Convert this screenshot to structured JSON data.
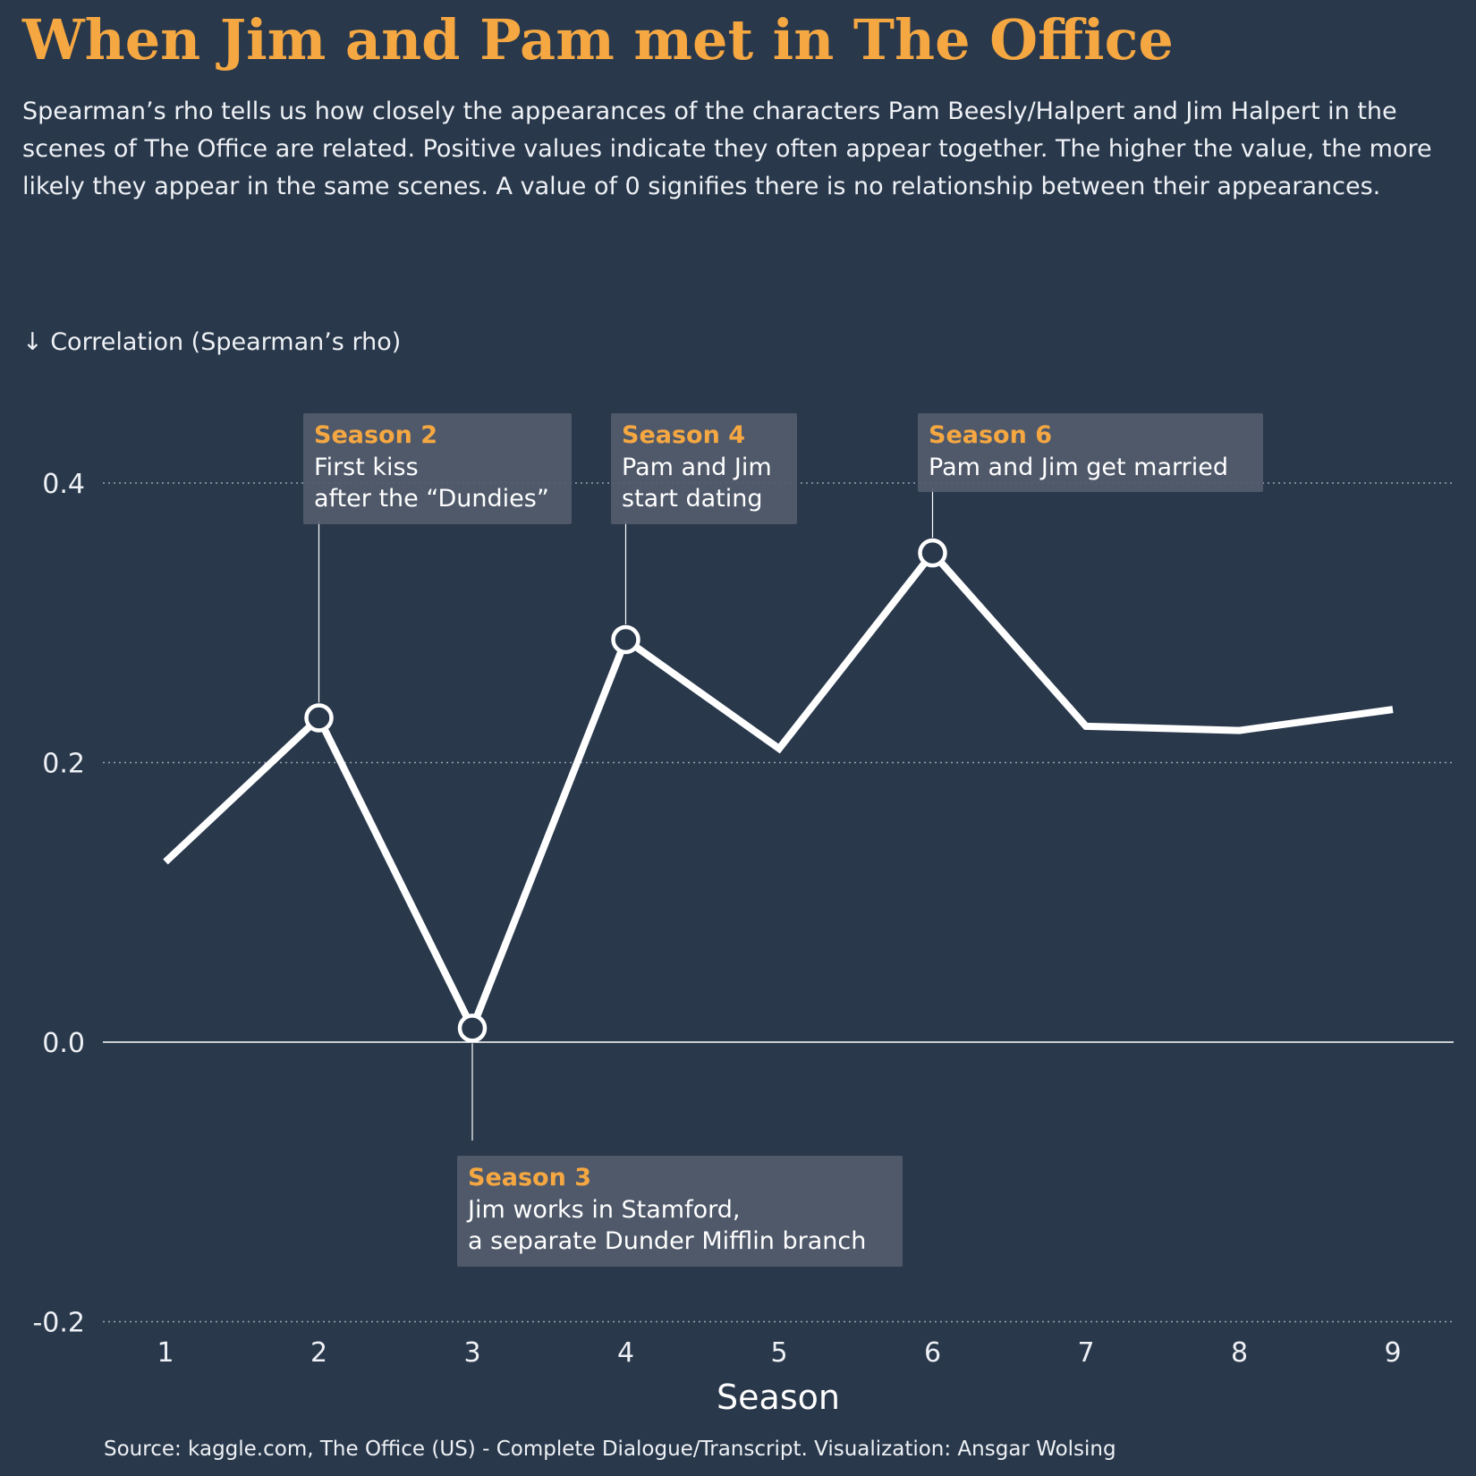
{
  "chart_data": {
    "type": "line",
    "title": "When Jim and Pam met in The Office",
    "subtitle": "Spearman’s rho tells us how closely the appearances of the characters Pam Beesly/Halpert and Jim Halpert in the scenes of The Office are related. Positive values indicate they often appear together. The higher the value, the more likely they appear in the same scenes. A value of 0 signifies there is no relationship between their appearances.",
    "ylabel": "↓ Correlation (Spearman’s rho)",
    "xlabel": "Season",
    "x": [
      1,
      2,
      3,
      4,
      5,
      6,
      7,
      8,
      9
    ],
    "series": [
      {
        "values": [
          0.129,
          0.232,
          0.01,
          0.288,
          0.21,
          0.35,
          0.226,
          0.223,
          0.238
        ]
      }
    ],
    "ylim": [
      -0.2,
      0.45
    ],
    "yticks": [
      "0.4",
      "0.2",
      "0.0",
      "-0.2"
    ],
    "ytick_values": [
      0.4,
      0.2,
      0.0,
      -0.2
    ],
    "grid": "horizontal dotted",
    "annotations": [
      {
        "season": 2,
        "title": "Season 2",
        "lines": [
          "First kiss",
          "after the “Dundies”"
        ],
        "position": "above"
      },
      {
        "season": 3,
        "title": "Season 3",
        "lines": [
          "Jim works in Stamford,",
          "a separate Dunder Mifflin branch"
        ],
        "position": "below"
      },
      {
        "season": 4,
        "title": "Season 4",
        "lines": [
          "Pam and Jim",
          "start dating"
        ],
        "position": "above"
      },
      {
        "season": 6,
        "title": "Season 6",
        "lines": [
          "Pam and Jim get married"
        ],
        "position": "above"
      }
    ],
    "source": "Source: kaggle.com, The Office (US) - Complete Dialogue/Transcript. Visualization: Ansgar Wolsing",
    "colors": {
      "background": "#29384b",
      "title": "#f5a742",
      "line": "#ffffff",
      "annotation_box": "#525c6d",
      "annotation_title": "#f5a742",
      "grid": "#9aa3b0"
    }
  }
}
